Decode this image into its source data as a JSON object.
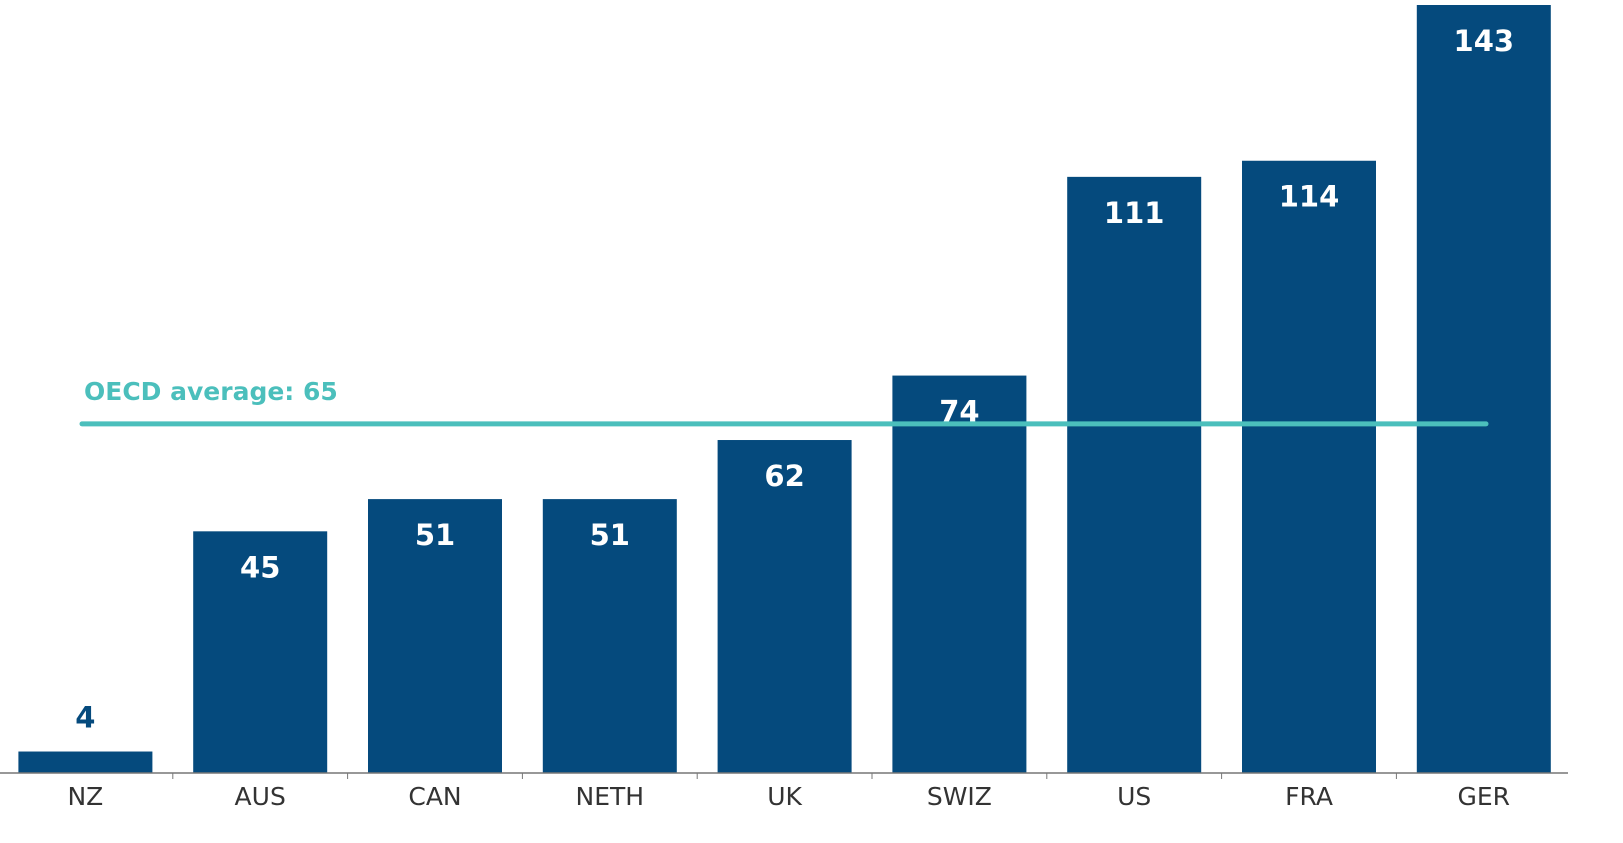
{
  "chart_data": {
    "type": "bar",
    "categories": [
      "NZ",
      "AUS",
      "CAN",
      "NETH",
      "UK",
      "SWIZ",
      "US",
      "FRA",
      "GER"
    ],
    "values": [
      4,
      45,
      51,
      51,
      62,
      74,
      111,
      114,
      143
    ],
    "color": "#054a7d",
    "ylim": [
      0,
      143
    ],
    "reference_line": {
      "value": 65,
      "label": "OECD average: 65",
      "color": "#4bbfbc"
    }
  }
}
